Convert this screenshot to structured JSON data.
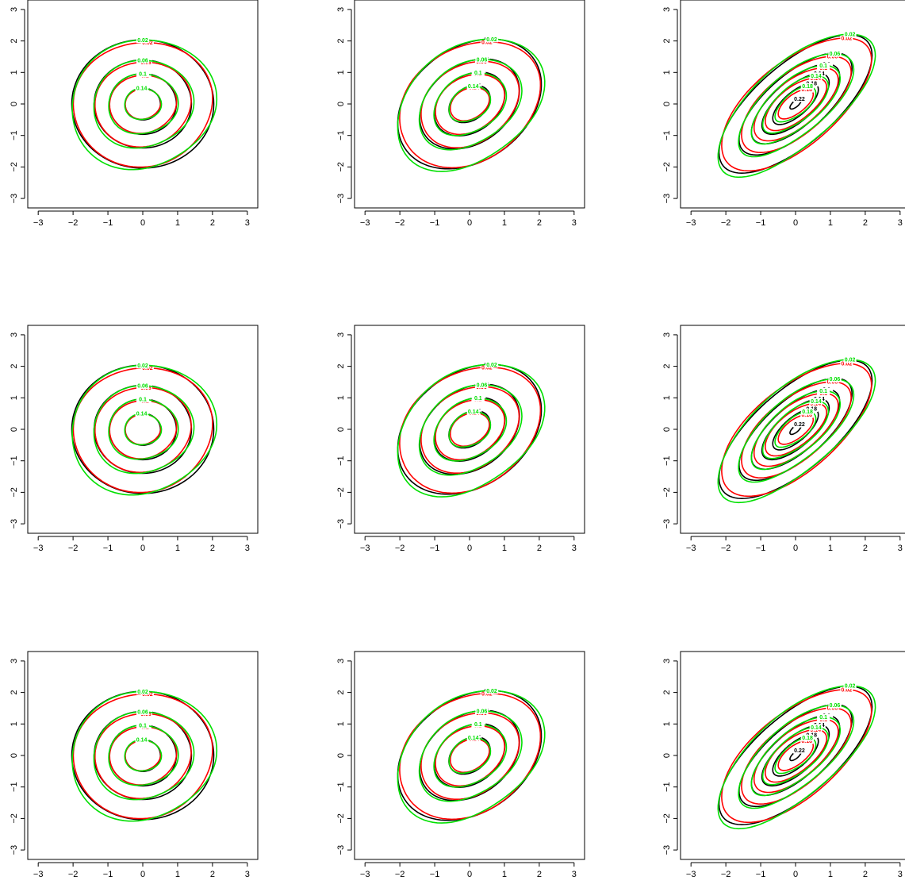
{
  "chart_data": {
    "type": "contour",
    "grid": false,
    "layout": {
      "rows": 3,
      "cols": 3
    },
    "axis": {
      "xlim": [
        -3.3,
        3.3
      ],
      "ylim": [
        -3.3,
        3.3
      ],
      "xticks": [
        -3,
        -2,
        -1,
        0,
        1,
        2,
        3
      ],
      "yticks": [
        -3,
        -2,
        -1,
        0,
        1,
        2,
        3
      ],
      "xtick_labels": [
        "−3",
        "−2",
        "−1",
        "0",
        "1",
        "2",
        "3"
      ],
      "ytick_labels": [
        "−3",
        "−2",
        "−1",
        "0",
        "1",
        "2",
        "3"
      ]
    },
    "series_colors": {
      "black": "#000000",
      "red": "#ff0000",
      "green": "#00e000"
    },
    "contour_levels": {
      "panel_col_1": [
        0.02,
        0.06,
        0.1,
        0.14
      ],
      "panel_col_2": [
        0.02,
        0.06,
        0.1,
        0.14
      ],
      "panel_col_3": [
        0.02,
        0.06,
        0.1,
        0.14,
        0.18,
        0.22,
        0.26,
        0.3,
        0.34
      ]
    },
    "panels": [
      {
        "row": 1,
        "col": 1,
        "correlation": 0.0,
        "contours": [
          {
            "color": "black",
            "levels": [
              0.02,
              0.06,
              0.1,
              0.14
            ],
            "label_x": 0.0,
            "label_y": [
              2.02,
              1.35,
              0.9,
              0.45
            ]
          },
          {
            "color": "red",
            "levels": [
              0.02,
              0.06,
              0.1,
              0.14
            ],
            "label_x": 0.0,
            "label_y": [
              -2.0,
              -1.3,
              -0.9,
              -0.45
            ]
          },
          {
            "color": "green",
            "levels": [
              0.02,
              0.06,
              0.1,
              0.14
            ],
            "label_x": 0.0,
            "label_y": [
              2.02,
              1.35,
              0.9,
              0.45
            ]
          }
        ]
      },
      {
        "row": 1,
        "col": 2,
        "correlation": 0.3,
        "contours": [
          {
            "color": "black",
            "levels": [
              0.02,
              0.06,
              0.1,
              0.14
            ]
          },
          {
            "color": "red",
            "levels": [
              0.02,
              0.06,
              0.1,
              0.14
            ]
          },
          {
            "color": "green",
            "levels": [
              0.02,
              0.06,
              0.1,
              0.14
            ]
          }
        ]
      },
      {
        "row": 1,
        "col": 3,
        "correlation": 0.7,
        "contours": [
          {
            "color": "black",
            "levels": [
              0.02,
              0.06,
              0.1,
              0.14,
              0.18,
              0.22,
              0.26,
              0.3,
              0.34
            ]
          },
          {
            "color": "red",
            "levels": [
              0.02,
              0.06,
              0.1,
              0.14,
              0.18,
              0.22,
              0.26,
              0.3
            ]
          },
          {
            "color": "green",
            "levels": [
              0.02,
              0.06,
              0.1,
              0.14,
              0.18,
              0.22,
              0.26,
              0.3
            ]
          }
        ]
      },
      {
        "row": 2,
        "col": 1,
        "correlation": 0.0,
        "contours": [
          {
            "color": "black",
            "levels": [
              0.02,
              0.06,
              0.1,
              0.14
            ]
          },
          {
            "color": "red",
            "levels": [
              0.02,
              0.06,
              0.1,
              0.14
            ]
          },
          {
            "color": "green",
            "levels": [
              0.02,
              0.06,
              0.1,
              0.14
            ]
          }
        ]
      },
      {
        "row": 2,
        "col": 2,
        "correlation": 0.3,
        "contours": [
          {
            "color": "black",
            "levels": [
              0.02,
              0.06,
              0.1,
              0.14
            ]
          },
          {
            "color": "red",
            "levels": [
              0.02,
              0.06,
              0.1,
              0.14
            ]
          },
          {
            "color": "green",
            "levels": [
              0.02,
              0.06,
              0.1,
              0.14
            ]
          }
        ]
      },
      {
        "row": 2,
        "col": 3,
        "correlation": 0.7,
        "contours": [
          {
            "color": "black",
            "levels": [
              0.02,
              0.06,
              0.1,
              0.14,
              0.18,
              0.22,
              0.26,
              0.3,
              0.34
            ]
          },
          {
            "color": "red",
            "levels": [
              0.02,
              0.06,
              0.1,
              0.14,
              0.18,
              0.22,
              0.26,
              0.3
            ]
          },
          {
            "color": "green",
            "levels": [
              0.02,
              0.06,
              0.1,
              0.14,
              0.18,
              0.22,
              0.26,
              0.3
            ]
          }
        ]
      },
      {
        "row": 3,
        "col": 1,
        "correlation": 0.0,
        "contours": [
          {
            "color": "black",
            "levels": [
              0.02,
              0.06,
              0.1,
              0.14
            ]
          },
          {
            "color": "red",
            "levels": [
              0.02,
              0.06,
              0.1,
              0.14
            ]
          },
          {
            "color": "green",
            "levels": [
              0.02,
              0.06,
              0.1,
              0.14
            ]
          }
        ]
      },
      {
        "row": 3,
        "col": 2,
        "correlation": 0.3,
        "contours": [
          {
            "color": "black",
            "levels": [
              0.02,
              0.06,
              0.1,
              0.14
            ]
          },
          {
            "color": "red",
            "levels": [
              0.02,
              0.06,
              0.1,
              0.14
            ]
          },
          {
            "color": "green",
            "levels": [
              0.02,
              0.06,
              0.1,
              0.14
            ]
          }
        ]
      },
      {
        "row": 3,
        "col": 3,
        "correlation": 0.7,
        "contours": [
          {
            "color": "black",
            "levels": [
              0.02,
              0.06,
              0.1,
              0.14,
              0.18,
              0.22,
              0.26,
              0.3,
              0.34
            ]
          },
          {
            "color": "red",
            "levels": [
              0.02,
              0.06,
              0.1,
              0.14,
              0.18,
              0.22,
              0.26,
              0.3
            ]
          },
          {
            "color": "green",
            "levels": [
              0.02,
              0.06,
              0.1,
              0.14,
              0.18,
              0.22,
              0.26,
              0.3
            ]
          }
        ]
      }
    ]
  }
}
